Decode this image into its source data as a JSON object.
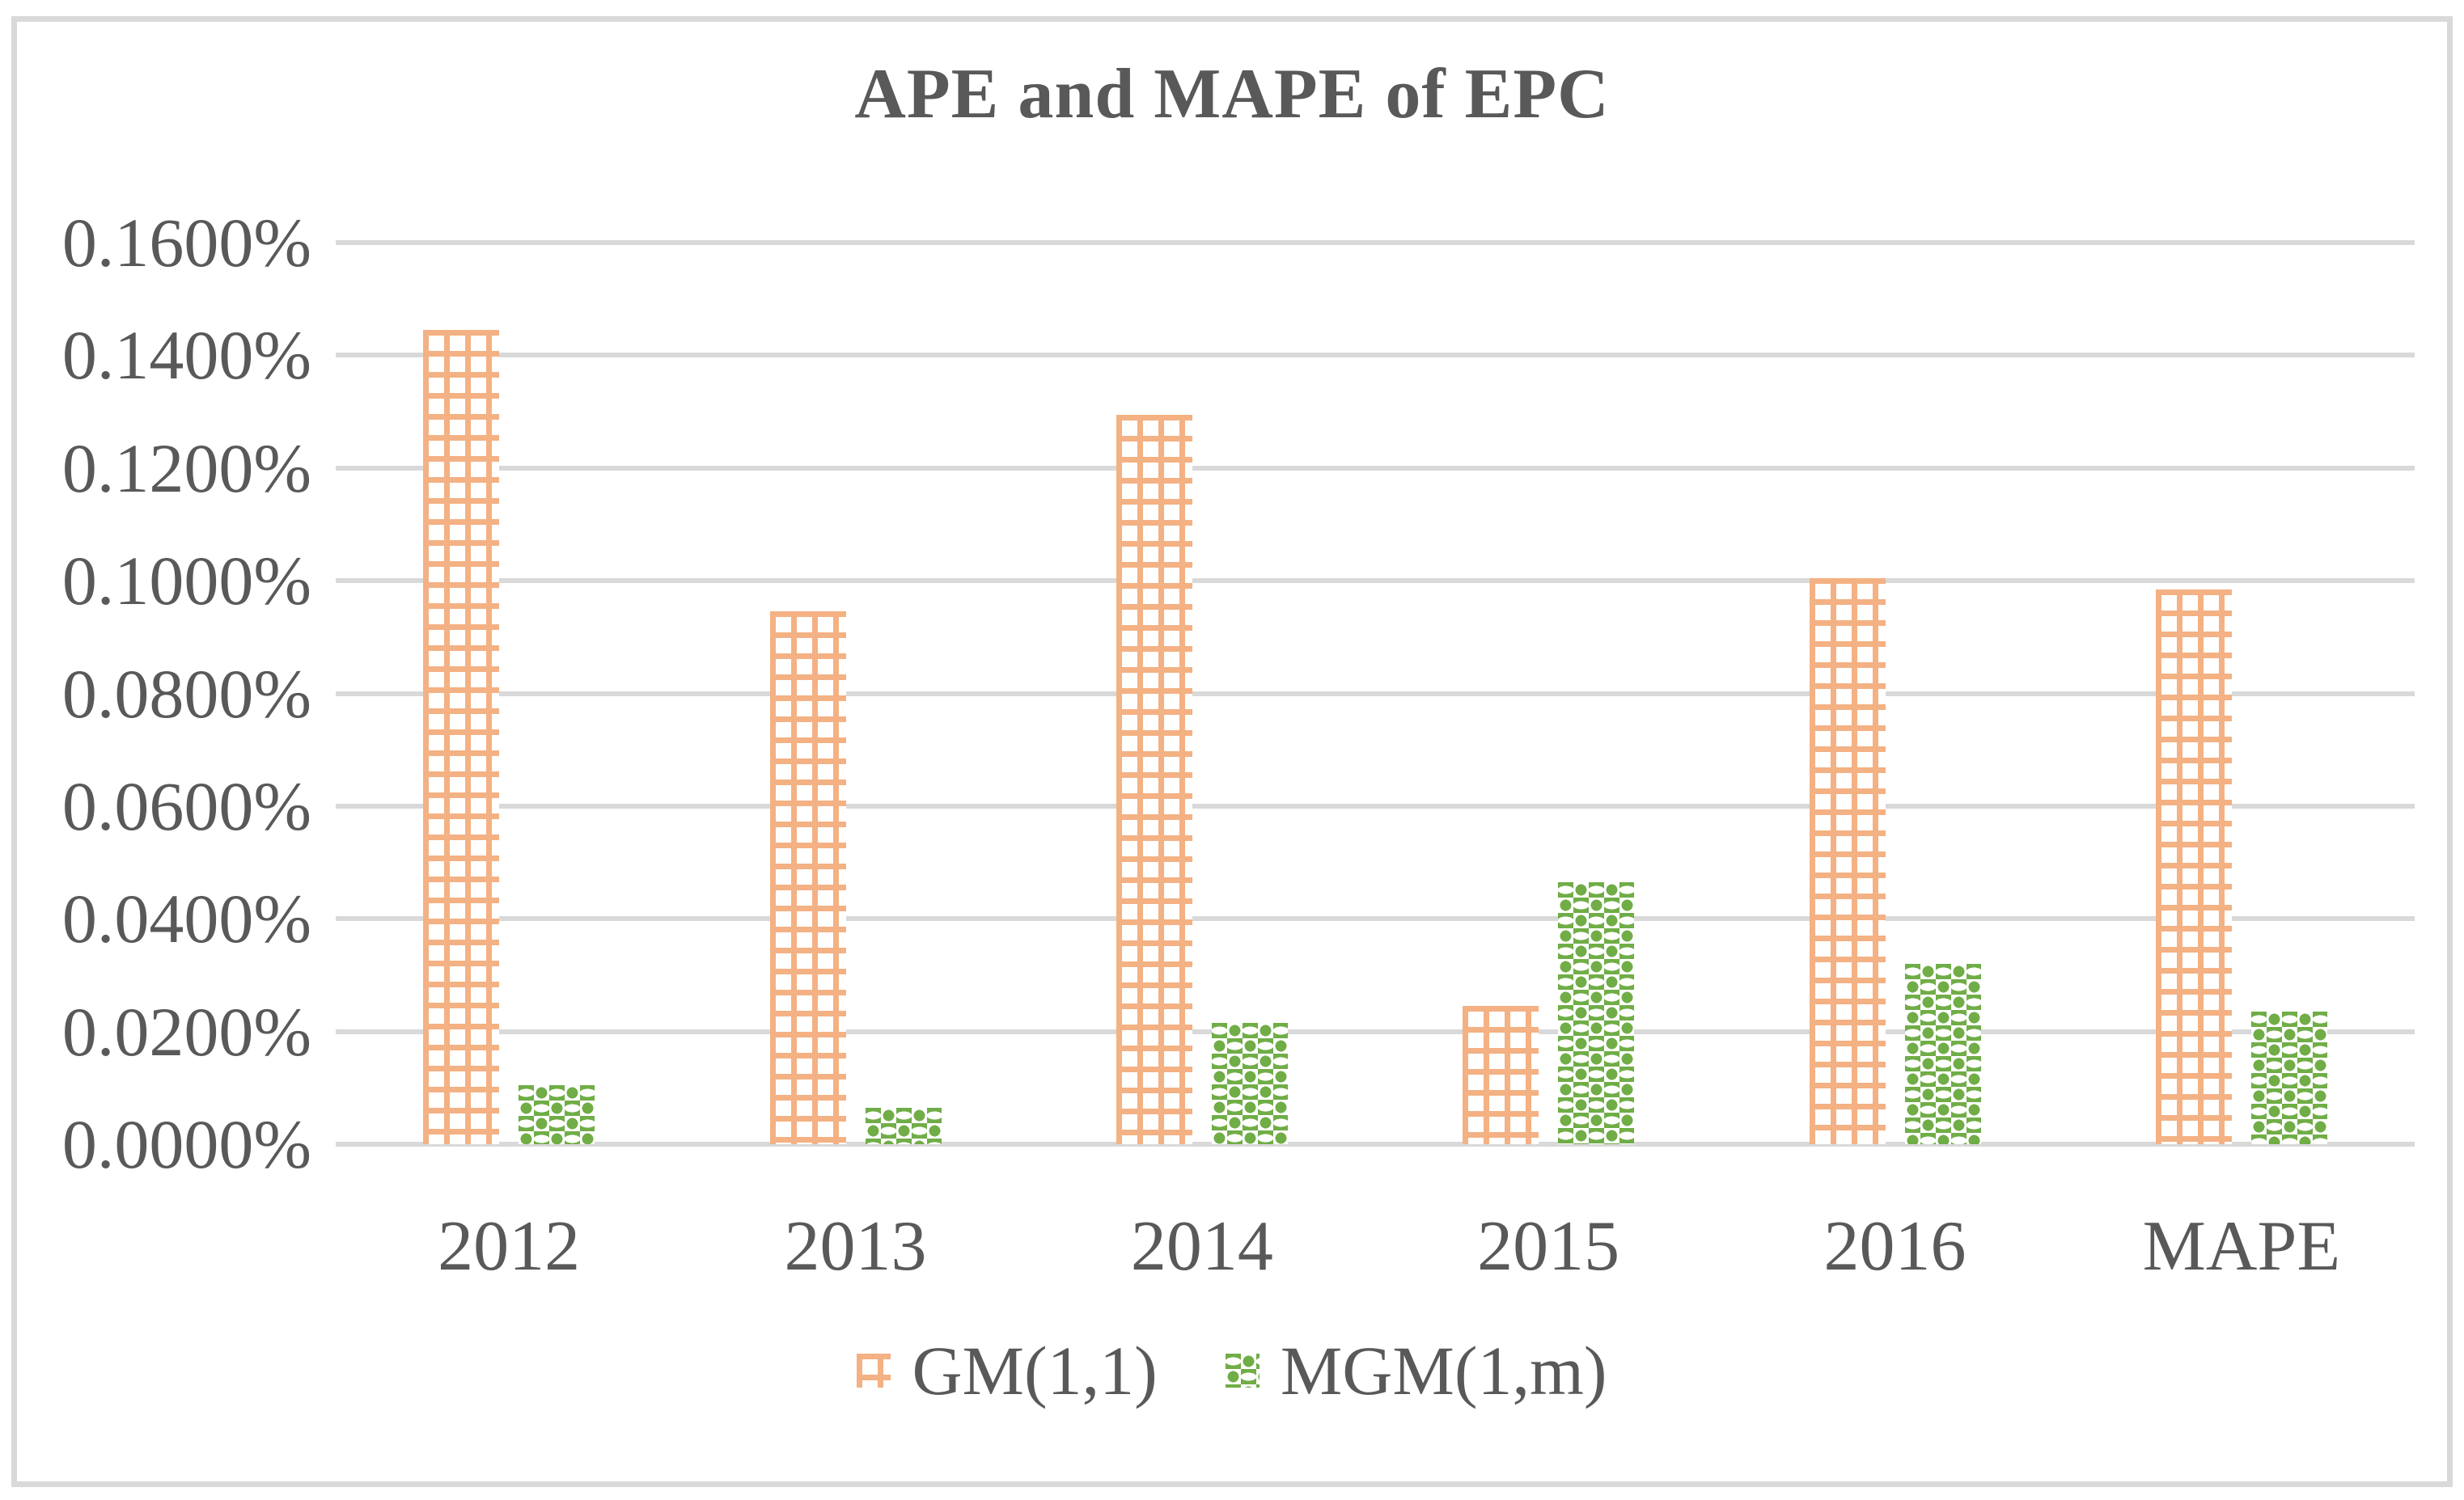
{
  "page": {
    "background": "#ffffff",
    "frame_border_color": "#d9d9d9",
    "text_color": "#595959"
  },
  "chart_data": {
    "type": "bar",
    "title": "APE and MAPE of EPC",
    "categories": [
      "2012",
      "2013",
      "2014",
      "2015",
      "2016",
      "MAPE"
    ],
    "series": [
      {
        "name": "GM(1,1)",
        "color": "#F4B183",
        "pattern": "orange-crosshatch",
        "values_percent": [
          0.1445,
          0.0945,
          0.1295,
          0.0245,
          0.1005,
          0.0985
        ]
      },
      {
        "name": "MGM(1,m)",
        "color": "#70AD47",
        "pattern": "green-checker",
        "values_percent": [
          0.0105,
          0.0065,
          0.0215,
          0.0465,
          0.032,
          0.0235
        ]
      }
    ],
    "y_axis": {
      "range_percent": [
        0.0,
        0.16
      ],
      "tick_step_percent": 0.02,
      "ticks": [
        "0.1600%",
        "0.1400%",
        "0.1200%",
        "0.1000%",
        "0.0800%",
        "0.0600%",
        "0.0400%",
        "0.0200%",
        "0.0000%"
      ]
    },
    "xlabel": "",
    "ylabel": "",
    "grid": true,
    "gridline_color": "#d9d9d9",
    "legend_position": "bottom"
  }
}
